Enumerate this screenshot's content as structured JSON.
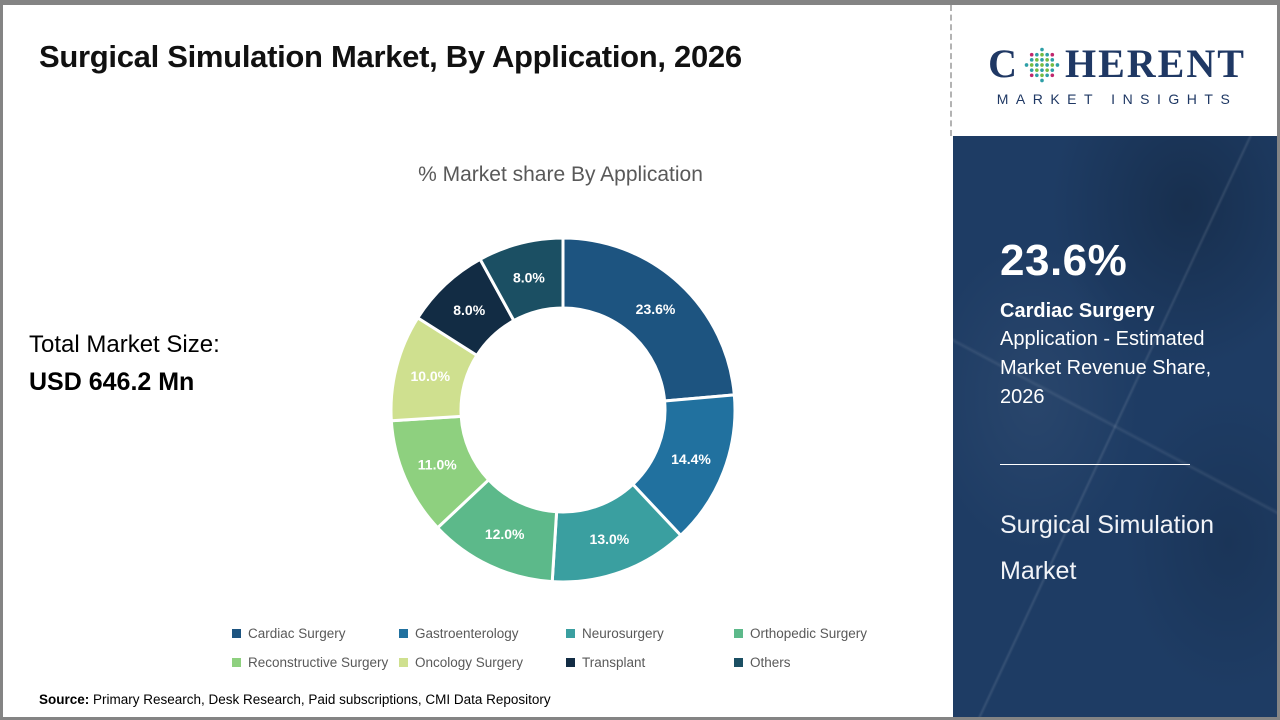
{
  "header": {
    "title": "Surgical Simulation Market, By Application, 2026"
  },
  "logo": {
    "line1_pre": "C",
    "line1_post": "HERENT",
    "line2": "MARKET INSIGHTS",
    "navy": "#1F3864",
    "globe_dot_colors": {
      "outer_a": "#C0266D",
      "outer_b": "#2E9FA7",
      "inner_a": "#76BC43",
      "inner_b": "#2E9FA7"
    }
  },
  "chart": {
    "subtitle": "% Market share By Application"
  },
  "chart_data": {
    "type": "pie",
    "donut": true,
    "title": "% Market share By Application",
    "start_angle_deg": 0,
    "direction": "clockwise",
    "legend_position": "bottom",
    "categories": [
      "Cardiac Surgery",
      "Gastroenterology",
      "Neurosurgery",
      "Orthopedic Surgery",
      "Reconstructive Surgery",
      "Oncology Surgery",
      "Transplant",
      "Others"
    ],
    "values": [
      23.6,
      14.4,
      13.0,
      12.0,
      11.0,
      10.0,
      8.0,
      8.0
    ],
    "labels": [
      "23.6%",
      "14.4%",
      "13.0%",
      "12.0%",
      "11.0%",
      "10.0%",
      "8.0%",
      "8.0%"
    ],
    "colors": [
      "#1D5480",
      "#21719F",
      "#3A9FA0",
      "#5CB98A",
      "#8ED07F",
      "#CFE08F",
      "#122C44",
      "#1B4F63"
    ]
  },
  "market_size": {
    "label": "Total Market Size:",
    "value": "USD 646.2 Mn"
  },
  "source": {
    "label": "Source:",
    "text": " Primary Research, Desk Research, Paid subscriptions, CMI Data Repository"
  },
  "sidebar": {
    "bg_color": "#1E3C64",
    "stat_value": "23.6%",
    "stat_title": "Cardiac Surgery",
    "stat_desc": "Application - Estimated Market Revenue Share, 2026",
    "panel_title": "Surgical Simulation Market"
  }
}
